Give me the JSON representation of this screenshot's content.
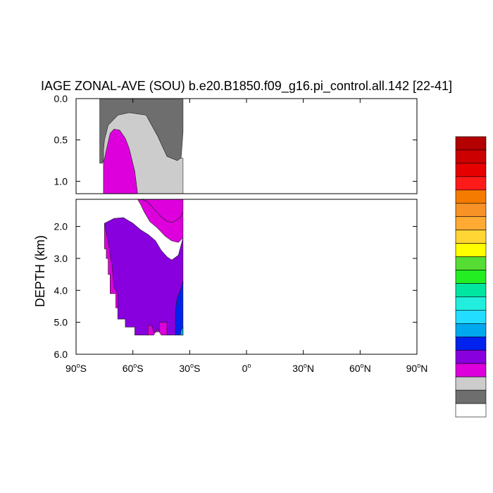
{
  "chart_data": {
    "type": "contour",
    "title": "IAGE ZONAL-AVE (SOU) b.e20.B1850.f09_g16.pi_control.all.142 [22-41]",
    "ylabel": "DEPTH (km)",
    "xlabel": "",
    "x_ticks": [
      {
        "value": -90,
        "deg": "90",
        "hemi": "S"
      },
      {
        "value": -60,
        "deg": "60",
        "hemi": "S"
      },
      {
        "value": -30,
        "deg": "30",
        "hemi": "S"
      },
      {
        "value": 0,
        "deg": "0",
        "hemi": ""
      },
      {
        "value": 30,
        "deg": "30",
        "hemi": "N"
      },
      {
        "value": 60,
        "deg": "60",
        "hemi": "N"
      },
      {
        "value": 90,
        "deg": "90",
        "hemi": "N"
      }
    ],
    "upper_panel": {
      "ylim": [
        0.0,
        1.15
      ],
      "y_ticks": [
        "0.0",
        "0.5",
        "1.0"
      ]
    },
    "lower_panel": {
      "ylim": [
        1.15,
        6.0
      ],
      "y_ticks": [
        "2.0",
        "3.0",
        "4.0",
        "5.0",
        "6.0"
      ]
    },
    "xlim": [
      -90,
      90
    ],
    "colorbar": {
      "placement": "right",
      "colors_top_to_bottom": [
        "#b30000",
        "#cc0000",
        "#e60000",
        "#ff1a1a",
        "#f57a00",
        "#f79226",
        "#ffaa33",
        "#ffd633",
        "#ffff00",
        "#55dd33",
        "#22ee22",
        "#00e6a0",
        "#22eedd",
        "#22ddff",
        "#00a8ee",
        "#0022ee",
        "#8800dd",
        "#dd00dd",
        "#cccccc",
        "#6e6e6e",
        "#ffffff"
      ]
    },
    "fills": [
      {
        "name": "gray",
        "color": "#6e6e6e",
        "panel": "upper",
        "points": [
          [
            -77.5,
            0
          ],
          [
            -33.5,
            0
          ],
          [
            -33.5,
            0.4
          ],
          [
            -34.5,
            0.72
          ],
          [
            -35.5,
            0.73
          ],
          [
            -36.5,
            0.75
          ],
          [
            -42,
            0.7
          ],
          [
            -47,
            0.45
          ],
          [
            -53,
            0.2
          ],
          [
            -62,
            0.17
          ],
          [
            -68,
            0.2
          ],
          [
            -72,
            0.3
          ],
          [
            -74,
            0.5
          ],
          [
            -75,
            0.68
          ],
          [
            -76,
            0.78
          ],
          [
            -77.5,
            0.78
          ]
        ]
      },
      {
        "name": "lightgray",
        "color": "#cccccc",
        "panel": "upper",
        "points": [
          [
            -75.5,
            1.15
          ],
          [
            -75.5,
            0.62
          ],
          [
            -75,
            0.5
          ],
          [
            -73,
            0.32
          ],
          [
            -68,
            0.2
          ],
          [
            -62,
            0.17
          ],
          [
            -53,
            0.2
          ],
          [
            -47,
            0.45
          ],
          [
            -42,
            0.7
          ],
          [
            -36.5,
            0.75
          ],
          [
            -35.5,
            0.73
          ],
          [
            -34.5,
            0.72
          ],
          [
            -33.5,
            0.72
          ],
          [
            -33.5,
            1.15
          ]
        ]
      },
      {
        "name": "magenta-upper",
        "color": "#dd00dd",
        "panel": "upper",
        "points": [
          [
            -75.5,
            1.15
          ],
          [
            -75.5,
            0.78
          ],
          [
            -74,
            0.62
          ],
          [
            -72,
            0.42
          ],
          [
            -70,
            0.37
          ],
          [
            -67,
            0.38
          ],
          [
            -64,
            0.48
          ],
          [
            -62,
            0.6
          ],
          [
            -59,
            0.88
          ],
          [
            -57.5,
            1.15
          ]
        ]
      },
      {
        "name": "magenta-lower",
        "color": "#dd00dd",
        "panel": "lower",
        "points": [
          [
            -75.5,
            1.15
          ],
          [
            -57,
            1.15
          ],
          [
            -53,
            1.15
          ],
          [
            -33.5,
            1.15
          ],
          [
            -33.5,
            1.55
          ],
          [
            -35,
            1.72
          ],
          [
            -37,
            1.8
          ],
          [
            -39,
            1.87
          ],
          [
            -42,
            1.84
          ],
          [
            -45,
            1.7
          ],
          [
            -49,
            1.45
          ],
          [
            -51,
            1.3
          ],
          [
            -53,
            1.2
          ],
          [
            -56,
            1.15
          ],
          [
            -75.5,
            1.15
          ]
        ]
      },
      {
        "name": "magenta-lower-body",
        "color": "#dd00dd",
        "panel": "lower",
        "points": [
          [
            -75.5,
            1.15
          ],
          [
            -57.5,
            1.15
          ],
          [
            -56,
            1.3
          ],
          [
            -54,
            1.55
          ],
          [
            -51,
            1.85
          ],
          [
            -47,
            2.05
          ],
          [
            -43,
            2.3
          ],
          [
            -39.5,
            2.45
          ],
          [
            -36,
            2.5
          ],
          [
            -33.5,
            2.35
          ],
          [
            -33.5,
            1.55
          ],
          [
            -35,
            1.72
          ],
          [
            -39,
            1.87
          ],
          [
            -42,
            1.84
          ],
          [
            -45,
            1.7
          ],
          [
            -49,
            1.45
          ],
          [
            -51,
            1.3
          ],
          [
            -53,
            1.2
          ],
          [
            -56,
            1.15
          ]
        ]
      },
      {
        "name": "purple",
        "color": "#8800dd",
        "panel": "lower",
        "points": [
          [
            -75,
            1.9
          ],
          [
            -70,
            1.75
          ],
          [
            -65,
            1.72
          ],
          [
            -60,
            1.9
          ],
          [
            -56,
            2.1
          ],
          [
            -52,
            2.25
          ],
          [
            -48,
            2.45
          ],
          [
            -45,
            2.75
          ],
          [
            -42,
            2.95
          ],
          [
            -39.5,
            3.05
          ],
          [
            -36,
            2.9
          ],
          [
            -33.5,
            2.35
          ],
          [
            -33.5,
            3.8
          ],
          [
            -34,
            3.9
          ],
          [
            -35,
            4.05
          ],
          [
            -36,
            4.15
          ],
          [
            -36.8,
            4.3
          ],
          [
            -37.5,
            4.65
          ],
          [
            -37.5,
            5.4
          ],
          [
            -42,
            5.4
          ],
          [
            -42,
            5.0
          ],
          [
            -46,
            5.0
          ],
          [
            -46,
            5.3
          ],
          [
            -49,
            5.3
          ],
          [
            -50,
            5.1
          ],
          [
            -52,
            5.1
          ],
          [
            -52,
            5.4
          ],
          [
            -59,
            5.4
          ],
          [
            -59,
            5.15
          ],
          [
            -64,
            5.15
          ],
          [
            -64,
            4.9
          ],
          [
            -68,
            4.9
          ],
          [
            -68,
            4.55
          ],
          [
            -69,
            4.55
          ],
          [
            -69,
            4.1
          ],
          [
            -72,
            4.1
          ],
          [
            -72,
            3.5
          ],
          [
            -73,
            3.5
          ],
          [
            -73,
            3.0
          ],
          [
            -74,
            3.0
          ],
          [
            -74,
            2.7
          ],
          [
            -75,
            2.7
          ]
        ]
      },
      {
        "name": "magenta-pocket-left",
        "color": "#dd00dd",
        "panel": "lower",
        "points": [
          [
            -75,
            2.7
          ],
          [
            -74,
            2.7
          ],
          [
            -74,
            3.0
          ],
          [
            -73,
            3.0
          ],
          [
            -73,
            3.5
          ],
          [
            -72,
            3.5
          ],
          [
            -72,
            4.1
          ],
          [
            -69,
            4.1
          ],
          [
            -69,
            4.55
          ],
          [
            -68,
            4.55
          ],
          [
            -68,
            4.1
          ],
          [
            -70,
            3.9
          ],
          [
            -71,
            3.2
          ],
          [
            -72,
            2.9
          ],
          [
            -73,
            2.5
          ],
          [
            -74,
            2.2
          ],
          [
            -75,
            1.9
          ]
        ]
      },
      {
        "name": "magenta-pocket-bottom",
        "color": "#dd00dd",
        "panel": "lower",
        "points": [
          [
            -50,
            5.1
          ],
          [
            -49,
            5.3
          ],
          [
            -46,
            5.3
          ],
          [
            -46,
            5.0
          ],
          [
            -42,
            5.0
          ],
          [
            -42,
            5.4
          ],
          [
            -45,
            5.4
          ],
          [
            -47,
            5.2
          ],
          [
            -49,
            5.4
          ],
          [
            -52,
            5.4
          ],
          [
            -52,
            5.1
          ]
        ]
      },
      {
        "name": "blue",
        "color": "#0022ee",
        "panel": "lower",
        "points": [
          [
            -33.5,
            3.7
          ],
          [
            -33.5,
            5.4
          ],
          [
            -37.5,
            5.4
          ],
          [
            -37.5,
            4.65
          ],
          [
            -36.8,
            4.3
          ],
          [
            -36,
            4.15
          ],
          [
            -35,
            4.0
          ],
          [
            -34,
            3.82
          ]
        ]
      },
      {
        "name": "cyan-corner",
        "color": "#00a8ee",
        "panel": "lower",
        "points": [
          [
            -33.5,
            5.15
          ],
          [
            -33.5,
            5.4
          ],
          [
            -35,
            5.4
          ],
          [
            -34.5,
            5.25
          ]
        ]
      }
    ]
  }
}
